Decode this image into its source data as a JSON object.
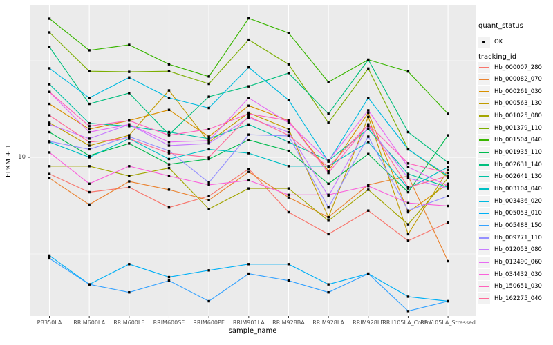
{
  "colors": {
    "panel_bg": "#EBEBEB",
    "gridline": "#FFFFFF",
    "tick_label": "#4D4D4D",
    "axis_title": "#000000",
    "legend_key_bg": "#F2F2F2",
    "point": "#000000"
  },
  "axes": {
    "x_title": "sample_name",
    "y_title": "FPKM + 1",
    "y_tick_labels": [
      "10"
    ]
  },
  "legend": {
    "quant_status": {
      "title": "quant_status",
      "items": [
        {
          "label": "OK",
          "marker": "point"
        }
      ]
    },
    "tracking_id": {
      "title": "tracking_id"
    }
  },
  "chart_data": {
    "type": "line",
    "title": "",
    "xlabel": "sample_name",
    "ylabel": "FPKM + 1",
    "y_scale": "log10",
    "y_ticks": [
      10
    ],
    "ylim": [
      1.5,
      62
    ],
    "grid": "on",
    "legend_position": "right",
    "point_marker": "black point (quant_status OK) on every value",
    "categories": [
      "PB350LA",
      "RRIM600LA",
      "RRIM600LE",
      "RRIM600SE",
      "RRIM600PE",
      "RRIM901LA",
      "RRIM928BA",
      "RRIM928LA",
      "RRIM928LE",
      "RRII105LA_Control",
      "RRII105LA_Stressed"
    ],
    "series": [
      {
        "name": "Hb_000007_280",
        "color": "#F8766D",
        "values": [
          8.2,
          6.6,
          7.0,
          5.5,
          6.3,
          8.7,
          5.2,
          4.0,
          5.3,
          3.7,
          4.6
        ]
      },
      {
        "name": "Hb_000082_070",
        "color": "#EA8331",
        "values": [
          7.8,
          5.7,
          7.5,
          6.8,
          6.0,
          8.4,
          6.2,
          4.9,
          7.2,
          8.0,
          2.9
        ]
      },
      {
        "name": "Hb_000261_030",
        "color": "#D89000",
        "values": [
          18.9,
          14.0,
          15.5,
          17.6,
          12.8,
          18.5,
          15.5,
          8.5,
          17.0,
          5.2,
          7.3
        ]
      },
      {
        "name": "Hb_000563_130",
        "color": "#C09B00",
        "values": [
          15.1,
          11.5,
          13.0,
          22.2,
          12.0,
          17.0,
          14.0,
          4.9,
          16.2,
          4.0,
          8.6
        ]
      },
      {
        "name": "Hb_001025_080",
        "color": "#A3A500",
        "values": [
          9.0,
          9.0,
          8.0,
          8.8,
          5.4,
          6.9,
          6.9,
          4.7,
          6.8,
          4.5,
          7.8
        ]
      },
      {
        "name": "Hb_001379_110",
        "color": "#7CAE00",
        "values": [
          44.3,
          27.9,
          27.7,
          27.9,
          24.0,
          40.6,
          30.3,
          15.1,
          28.8,
          11.0,
          7.9
        ]
      },
      {
        "name": "Hb_001504_040",
        "color": "#39B600",
        "values": [
          52.2,
          35.8,
          38.2,
          30.3,
          26.2,
          52.4,
          44.0,
          24.5,
          32.0,
          27.8,
          16.8
        ]
      },
      {
        "name": "Hb_001935_110",
        "color": "#00BB4E",
        "values": [
          13.5,
          10.2,
          11.8,
          9.2,
          9.8,
          12.3,
          10.8,
          7.3,
          10.4,
          6.6,
          13.0
        ]
      },
      {
        "name": "Hb_002631_140",
        "color": "#00BF7D",
        "values": [
          37.3,
          18.9,
          21.5,
          13.1,
          20.6,
          23.3,
          27.3,
          16.8,
          32.0,
          13.5,
          9.4
        ]
      },
      {
        "name": "Hb_002641_130",
        "color": "#00C1A3",
        "values": [
          23.9,
          15.0,
          14.5,
          13.5,
          12.5,
          14.8,
          12.0,
          9.6,
          14.0,
          8.2,
          7.0
        ]
      },
      {
        "name": "Hb_003104_040",
        "color": "#00BFC4",
        "values": [
          12.0,
          10.0,
          12.5,
          9.8,
          11.0,
          10.5,
          9.0,
          9.0,
          12.0,
          6.9,
          8.9
        ]
      },
      {
        "name": "Hb_003436_020",
        "color": "#00BAE0",
        "values": [
          28.9,
          20.3,
          25.9,
          20.3,
          18.0,
          29.2,
          19.8,
          9.5,
          20.3,
          11.0,
          8.0
        ]
      },
      {
        "name": "Hb_005053_010",
        "color": "#00B0F6",
        "values": [
          3.1,
          2.2,
          2.8,
          2.4,
          2.6,
          2.8,
          2.8,
          2.2,
          2.5,
          1.9,
          1.8
        ]
      },
      {
        "name": "Hb_005488_150",
        "color": "#35A2FF",
        "values": [
          3.0,
          2.2,
          2.0,
          2.3,
          1.8,
          2.5,
          2.3,
          2.0,
          2.5,
          1.6,
          1.8
        ]
      },
      {
        "name": "Hb_009771_110",
        "color": "#9590FF",
        "values": [
          12.1,
          11.0,
          12.8,
          10.8,
          7.4,
          13.1,
          12.9,
          5.5,
          12.8,
          5.3,
          6.3
        ]
      },
      {
        "name": "Hb_012053_080",
        "color": "#C77CFF",
        "values": [
          14.8,
          12.5,
          14.8,
          11.5,
          11.8,
          16.0,
          13.5,
          6.3,
          14.5,
          7.8,
          6.9
        ]
      },
      {
        "name": "Hb_012490_060",
        "color": "#E76BF3",
        "values": [
          21.8,
          13.5,
          14.8,
          12.0,
          12.2,
          20.3,
          15.1,
          9.6,
          17.5,
          8.9,
          7.1
        ]
      },
      {
        "name": "Hb_034432_030",
        "color": "#FA62DB",
        "values": [
          10.6,
          7.3,
          9.0,
          8.0,
          7.2,
          7.6,
          6.4,
          6.4,
          7.1,
          5.8,
          5.6
        ]
      },
      {
        "name": "Hb_150651_030",
        "color": "#FF62BC",
        "values": [
          21.8,
          14.5,
          15.5,
          13.0,
          14.0,
          16.8,
          15.5,
          8.3,
          14.8,
          9.3,
          8.3
        ]
      },
      {
        "name": "Hb_162275_040",
        "color": "#FF6A98",
        "values": [
          16.5,
          12.0,
          12.5,
          10.5,
          10.0,
          16.3,
          13.0,
          8.9,
          14.8,
          7.0,
          8.0
        ]
      }
    ]
  }
}
